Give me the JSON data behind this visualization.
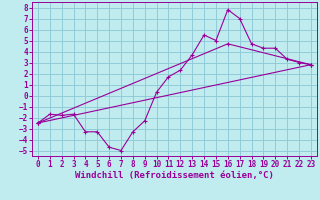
{
  "title": "",
  "xlabel": "Windchill (Refroidissement éolien,°C)",
  "xlim": [
    -0.5,
    23.5
  ],
  "ylim": [
    -5.5,
    8.5
  ],
  "xticks": [
    0,
    1,
    2,
    3,
    4,
    5,
    6,
    7,
    8,
    9,
    10,
    11,
    12,
    13,
    14,
    15,
    16,
    17,
    18,
    19,
    20,
    21,
    22,
    23
  ],
  "yticks": [
    -5,
    -4,
    -3,
    -2,
    -1,
    0,
    1,
    2,
    3,
    4,
    5,
    6,
    7,
    8
  ],
  "bg_color": "#c0ecf0",
  "grid_color": "#90ccd8",
  "line_color": "#990099",
  "line1_x": [
    0,
    1,
    2,
    3,
    4,
    5,
    6,
    7,
    8,
    9,
    10,
    11,
    12,
    13,
    14,
    15,
    16,
    17,
    18,
    19,
    20,
    21,
    22,
    23
  ],
  "line1_y": [
    -2.5,
    -1.7,
    -1.8,
    -1.7,
    -3.3,
    -3.3,
    -4.7,
    -5.0,
    -3.3,
    -2.3,
    0.3,
    1.7,
    2.3,
    3.7,
    5.5,
    5.0,
    7.8,
    7.0,
    4.7,
    4.3,
    4.3,
    3.3,
    3.0,
    2.8
  ],
  "line2_x": [
    0,
    23
  ],
  "line2_y": [
    -2.5,
    2.8
  ],
  "line3_x": [
    0,
    16,
    23
  ],
  "line3_y": [
    -2.5,
    4.7,
    2.8
  ],
  "font_family": "monospace",
  "tick_fontsize": 5.5,
  "xlabel_fontsize": 6.5
}
